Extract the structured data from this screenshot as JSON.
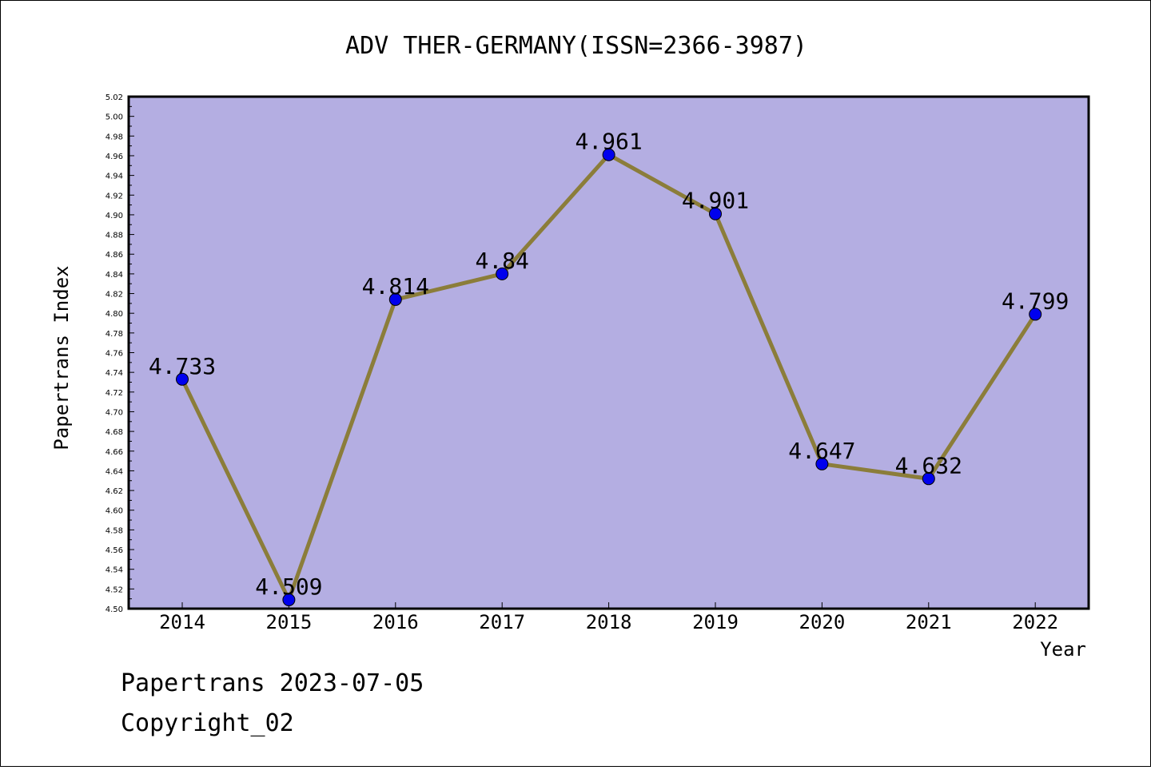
{
  "chart_data": {
    "type": "line",
    "title": "ADV THER-GERMANY(ISSN=2366-3987)",
    "xlabel": "Year",
    "ylabel": "Papertrans Index",
    "categories": [
      "2014",
      "2015",
      "2016",
      "2017",
      "2018",
      "2019",
      "2020",
      "2021",
      "2022"
    ],
    "values": [
      4.733,
      4.509,
      4.814,
      4.84,
      4.961,
      4.901,
      4.647,
      4.632,
      4.799
    ],
    "data_labels": [
      "4.733",
      "4.509",
      "4.814",
      "4.84",
      "4.961",
      "4.901",
      "4.647",
      "4.632",
      "4.799"
    ],
    "ylim": [
      4.5,
      5.02
    ],
    "y_ticks": [
      "4.50",
      "4.52",
      "4.54",
      "4.56",
      "4.58",
      "4.60",
      "4.62",
      "4.64",
      "4.66",
      "4.68",
      "4.70",
      "4.72",
      "4.74",
      "4.76",
      "4.78",
      "4.80",
      "4.82",
      "4.84",
      "4.86",
      "4.88",
      "4.90",
      "4.92",
      "4.94",
      "4.96",
      "4.98",
      "5.00",
      "5.02"
    ],
    "grid": false,
    "colors": {
      "plot_background": "#b4aee2",
      "line": "#8b7d3a",
      "marker": "#0000ee"
    }
  },
  "footer": {
    "line1": "Papertrans 2023-07-05",
    "line2": "Copyright_02"
  }
}
